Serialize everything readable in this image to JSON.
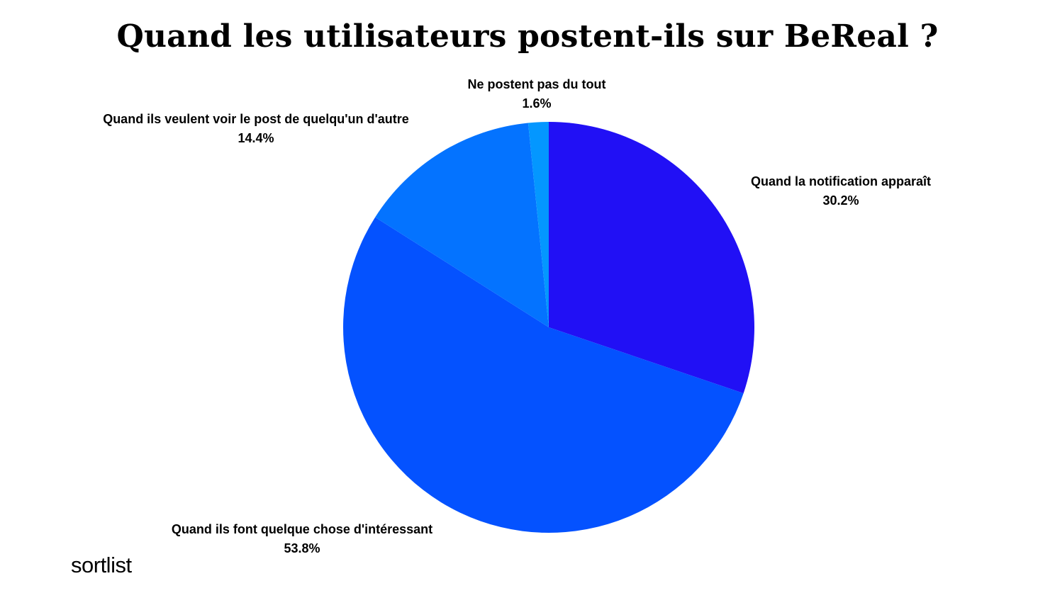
{
  "chart_data": {
    "type": "pie",
    "title": "Quand les utilisateurs postent-ils sur BeReal ?",
    "slices": [
      {
        "label": "Quand la notification apparaît",
        "value": 30.2,
        "value_label": "30.2%",
        "color": "#2110F5"
      },
      {
        "label": "Quand ils font quelque chose d'intéressant",
        "value": 53.8,
        "value_label": "53.8%",
        "color": "#0452FF"
      },
      {
        "label": "Quand ils veulent voir le post de quelqu'un d'autre",
        "value": 14.4,
        "value_label": "14.4%",
        "color": "#0473FF"
      },
      {
        "label": "Ne postent pas du tout",
        "value": 1.6,
        "value_label": "1.6%",
        "color": "#0497FF"
      }
    ],
    "start_angle": "12 o'clock",
    "direction": "clockwise",
    "legend": "none",
    "labels": "outside"
  },
  "brand": {
    "logo_text": "sortlist"
  }
}
